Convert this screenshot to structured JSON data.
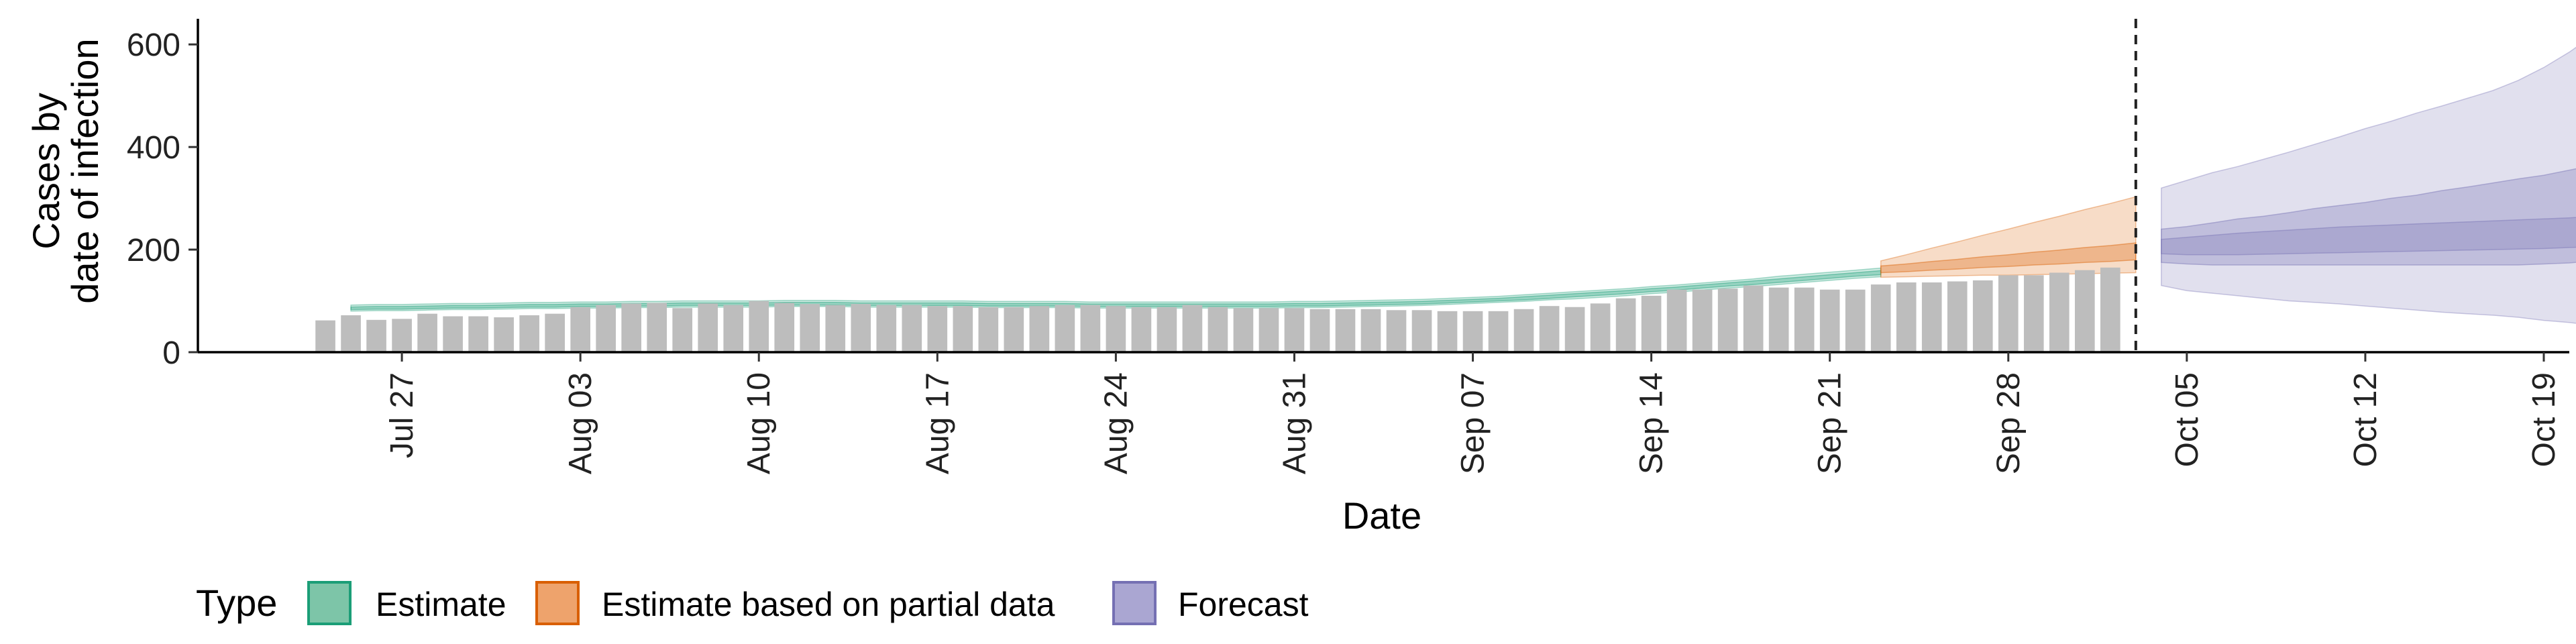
{
  "chart_data": {
    "type": "bar",
    "xlabel": "Date",
    "ylabel_lines": [
      "Cases by",
      "date of infection"
    ],
    "ylim": [
      0,
      650
    ],
    "y_ticks": [
      0,
      200,
      400,
      600
    ],
    "x_range": [
      "2020-07-19",
      "2020-10-20"
    ],
    "x_ticks": [
      {
        "date": "2020-07-27",
        "label": "Jul 27"
      },
      {
        "date": "2020-08-03",
        "label": "Aug 03"
      },
      {
        "date": "2020-08-10",
        "label": "Aug 10"
      },
      {
        "date": "2020-08-17",
        "label": "Aug 17"
      },
      {
        "date": "2020-08-24",
        "label": "Aug 24"
      },
      {
        "date": "2020-08-31",
        "label": "Aug 31"
      },
      {
        "date": "2020-09-07",
        "label": "Sep 07"
      },
      {
        "date": "2020-09-14",
        "label": "Sep 14"
      },
      {
        "date": "2020-09-21",
        "label": "Sep 21"
      },
      {
        "date": "2020-09-28",
        "label": "Sep 28"
      },
      {
        "date": "2020-10-05",
        "label": "Oct 05"
      },
      {
        "date": "2020-10-12",
        "label": "Oct 12"
      },
      {
        "date": "2020-10-19",
        "label": "Oct 19"
      }
    ],
    "vline_date": "2020-10-03",
    "bars": {
      "start_date": "2020-07-24",
      "color": "#bdbdbd",
      "values": [
        62,
        72,
        63,
        65,
        75,
        70,
        70,
        68,
        72,
        75,
        88,
        92,
        95,
        96,
        86,
        95,
        92,
        100,
        96,
        94,
        92,
        94,
        92,
        92,
        90,
        90,
        88,
        88,
        90,
        92,
        92,
        90,
        88,
        88,
        92,
        88,
        86,
        86,
        86,
        84,
        84,
        84,
        82,
        82,
        80,
        80,
        80,
        84,
        90,
        88,
        95,
        105,
        110,
        122,
        122,
        124,
        130,
        126,
        126,
        122,
        122,
        132,
        136,
        136,
        138,
        140,
        150,
        150,
        155,
        160,
        165
      ]
    },
    "legend": {
      "title": "Type",
      "position": "bottom",
      "entries": [
        {
          "label": "Estimate",
          "fill": "#7dc5a8",
          "stroke": "#1b9e77"
        },
        {
          "label": "Estimate based on partial data",
          "fill": "#eea36c",
          "stroke": "#d95f02"
        },
        {
          "label": "Forecast",
          "fill": "#aaa6d2",
          "stroke": "#7570b3"
        }
      ]
    },
    "series": [
      {
        "name": "Estimate",
        "color": "#1b9e77",
        "start_date": "2020-07-25",
        "outer_lower": [
          80,
          81,
          81,
          82,
          83,
          83,
          84,
          85,
          85,
          86,
          86,
          87,
          87,
          88,
          88,
          88,
          88,
          89,
          89,
          89,
          88,
          88,
          88,
          88,
          88,
          87,
          87,
          87,
          87,
          86,
          86,
          86,
          86,
          86,
          86,
          86,
          86,
          87,
          87,
          88,
          89,
          90,
          91,
          93,
          95,
          97,
          99,
          102,
          104,
          107,
          110,
          114,
          117,
          121,
          125,
          128,
          132,
          136,
          140,
          144,
          147
        ],
        "inner_lower": [
          83,
          84,
          84,
          85,
          86,
          86,
          87,
          88,
          88,
          89,
          89,
          90,
          90,
          91,
          91,
          91,
          91,
          92,
          92,
          92,
          91,
          91,
          91,
          91,
          91,
          90,
          90,
          90,
          90,
          89,
          89,
          89,
          89,
          89,
          89,
          89,
          89,
          90,
          90,
          91,
          92,
          93,
          94,
          96,
          98,
          100,
          102,
          105,
          108,
          111,
          114,
          118,
          121,
          125,
          129,
          132,
          136,
          140,
          144,
          148,
          151
        ],
        "inner_upper": [
          88,
          89,
          89,
          90,
          91,
          91,
          92,
          93,
          93,
          94,
          94,
          95,
          95,
          96,
          96,
          96,
          96,
          97,
          97,
          97,
          96,
          96,
          96,
          96,
          96,
          95,
          95,
          95,
          95,
          94,
          94,
          94,
          94,
          94,
          94,
          94,
          94,
          95,
          95,
          96,
          97,
          98,
          99,
          101,
          103,
          105,
          108,
          111,
          114,
          117,
          120,
          124,
          127,
          131,
          135,
          139,
          143,
          147,
          151,
          155,
          159
        ],
        "outer_upper": [
          92,
          93,
          93,
          94,
          95,
          95,
          96,
          97,
          97,
          98,
          98,
          99,
          99,
          100,
          100,
          100,
          100,
          101,
          101,
          101,
          100,
          100,
          100,
          100,
          100,
          99,
          99,
          99,
          99,
          98,
          98,
          98,
          98,
          98,
          98,
          98,
          98,
          99,
          99,
          100,
          101,
          102,
          103,
          105,
          107,
          109,
          112,
          115,
          118,
          121,
          124,
          128,
          131,
          135,
          139,
          143,
          148,
          152,
          156,
          160,
          164
        ]
      },
      {
        "name": "Estimate based on partial data",
        "color": "#d95f02",
        "start_date": "2020-09-23",
        "outer_lower": [
          146,
          147,
          148,
          149,
          150,
          150,
          151,
          152,
          153,
          154,
          155
        ],
        "inner_lower": [
          155,
          157,
          160,
          162,
          165,
          167,
          170,
          172,
          175,
          177,
          180
        ],
        "inner_upper": [
          168,
          172,
          177,
          181,
          186,
          190,
          195,
          199,
          204,
          208,
          213
        ],
        "outer_upper": [
          178,
          190,
          203,
          215,
          228,
          240,
          253,
          265,
          278,
          290,
          303
        ]
      },
      {
        "name": "Forecast",
        "color": "#7570b3",
        "start_date": "2020-10-04",
        "outer_lower": [
          130,
          120,
          115,
          110,
          105,
          100,
          97,
          94,
          90,
          86,
          82,
          78,
          75,
          72,
          68,
          62,
          58,
          52
        ],
        "inner_lower": [
          175,
          172,
          170,
          170,
          170,
          170,
          170,
          170,
          170,
          170,
          170,
          170,
          170,
          170,
          170,
          172,
          174,
          178
        ],
        "inner_upper": [
          240,
          245,
          252,
          260,
          265,
          272,
          280,
          286,
          292,
          300,
          306,
          315,
          322,
          330,
          338,
          345,
          355,
          365
        ],
        "outer_upper": [
          320,
          335,
          350,
          362,
          376,
          390,
          405,
          420,
          436,
          450,
          466,
          480,
          495,
          510,
          530,
          555,
          585,
          620
        ],
        "mid_lower": [
          192,
          190,
          190,
          190,
          191,
          192,
          193,
          194,
          195,
          196,
          197,
          198,
          199,
          200,
          201,
          202,
          204,
          206
        ],
        "mid_upper": [
          220,
          224,
          228,
          232,
          235,
          238,
          241,
          244,
          246,
          248,
          250,
          252,
          254,
          256,
          258,
          260,
          262,
          265
        ]
      }
    ]
  }
}
